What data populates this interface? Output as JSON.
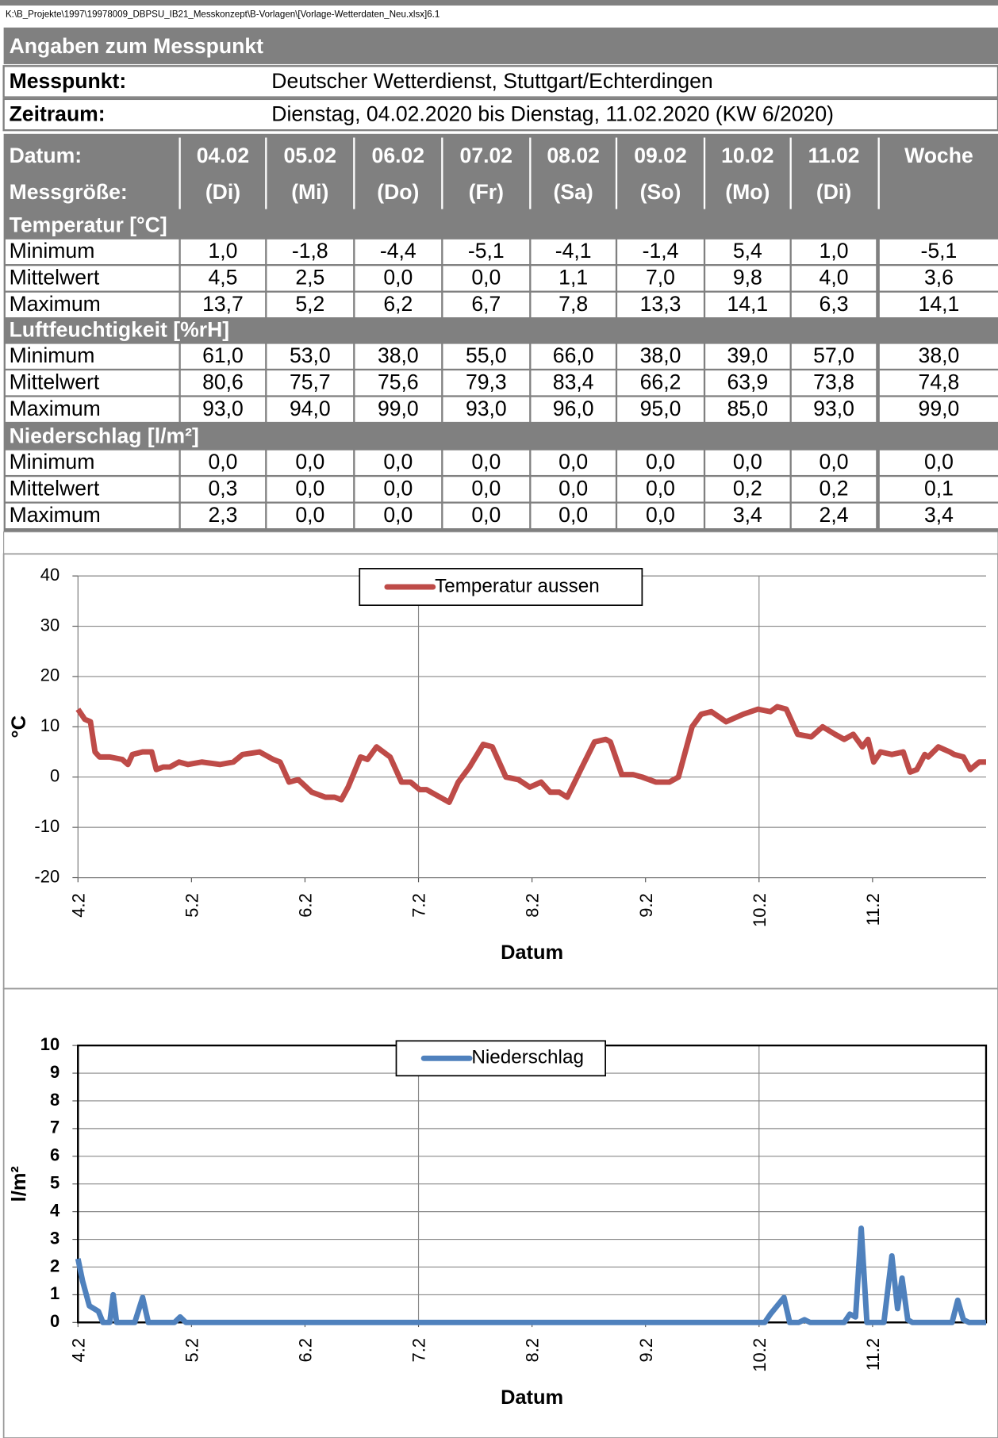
{
  "path": "K:\\B_Projekte\\1997\\19978009_DBPSU_IB21_Messkonzept\\B-Vorlagen\\[Vorlage-Wetterdaten_Neu.xlsx]6.1",
  "section_title": "Angaben zum Messpunkt",
  "info": [
    {
      "label": "Messpunkt:",
      "value": "Deutscher Wetterdienst, Stuttgart/Echterdingen"
    },
    {
      "label": "Zeitraum:",
      "value": "Dienstag, 04.02.2020 bis Dienstag, 11.02.2020 (KW 6/2020)"
    }
  ],
  "table": {
    "header1": [
      "Datum:",
      "04.02",
      "05.02",
      "06.02",
      "07.02",
      "08.02",
      "09.02",
      "10.02",
      "11.02",
      "Woche"
    ],
    "header2": [
      "Messgröße:",
      "(Di)",
      "(Mi)",
      "(Do)",
      "(Fr)",
      "(Sa)",
      "(So)",
      "(Mo)",
      "(Di)"
    ],
    "groups": [
      {
        "title": "Temperatur [°C]",
        "rows": [
          [
            "Minimum",
            "1,0",
            "-1,8",
            "-4,4",
            "-5,1",
            "-4,1",
            "-1,4",
            "5,4",
            "1,0",
            "-5,1"
          ],
          [
            "Mittelwert",
            "4,5",
            "2,5",
            "0,0",
            "0,0",
            "1,1",
            "7,0",
            "9,8",
            "4,0",
            "3,6"
          ],
          [
            "Maximum",
            "13,7",
            "5,2",
            "6,2",
            "6,7",
            "7,8",
            "13,3",
            "14,1",
            "6,3",
            "14,1"
          ]
        ]
      },
      {
        "title": "Luftfeuchtigkeit [%rH]",
        "rows": [
          [
            "Minimum",
            "61,0",
            "53,0",
            "38,0",
            "55,0",
            "66,0",
            "38,0",
            "39,0",
            "57,0",
            "38,0"
          ],
          [
            "Mittelwert",
            "80,6",
            "75,7",
            "75,6",
            "79,3",
            "83,4",
            "66,2",
            "63,9",
            "73,8",
            "74,8"
          ],
          [
            "Maximum",
            "93,0",
            "94,0",
            "99,0",
            "93,0",
            "96,0",
            "95,0",
            "85,0",
            "93,0",
            "99,0"
          ]
        ]
      },
      {
        "title": "Niederschlag [l/m²]",
        "rows": [
          [
            "Minimum",
            "0,0",
            "0,0",
            "0,0",
            "0,0",
            "0,0",
            "0,0",
            "0,0",
            "0,0",
            "0,0"
          ],
          [
            "Mittelwert",
            "0,3",
            "0,0",
            "0,0",
            "0,0",
            "0,0",
            "0,0",
            "0,2",
            "0,2",
            "0,1"
          ],
          [
            "Maximum",
            "2,3",
            "0,0",
            "0,0",
            "0,0",
            "0,0",
            "0,0",
            "3,4",
            "2,4",
            "3,4"
          ]
        ]
      }
    ]
  },
  "chart_data": [
    {
      "type": "line",
      "xlabel": "Datum",
      "ylabel": "°C",
      "ylim": [
        -20,
        40
      ],
      "yticks": [
        -20,
        -10,
        0,
        10,
        20,
        30,
        40
      ],
      "xlim": [
        0,
        8
      ],
      "xticks": [
        {
          "value": 0,
          "label": "4.2"
        },
        {
          "value": 1,
          "label": "5.2"
        },
        {
          "value": 2,
          "label": "6.2"
        },
        {
          "value": 3,
          "label": "7.2"
        },
        {
          "value": 4,
          "label": "8.2"
        },
        {
          "value": 5,
          "label": "9.2"
        },
        {
          "value": 6,
          "label": "10.2"
        },
        {
          "value": 7,
          "label": "11.2"
        }
      ],
      "xgrid": [
        3,
        6
      ],
      "grid": true,
      "bold_ticks": false,
      "legend": "top",
      "x": [
        0,
        0.06,
        0.11,
        0.15,
        0.19,
        0.28,
        0.39,
        0.44,
        0.48,
        0.57,
        0.65,
        0.69,
        0.75,
        0.81,
        0.89,
        0.97,
        1.09,
        1.25,
        1.37,
        1.45,
        1.6,
        1.72,
        1.78,
        1.86,
        1.94,
        2.06,
        2.18,
        2.26,
        2.32,
        2.38,
        2.49,
        2.55,
        2.63,
        2.75,
        2.85,
        2.93,
        3.01,
        3.07,
        3.19,
        3.27,
        3.35,
        3.45,
        3.57,
        3.65,
        3.77,
        3.88,
        3.98,
        4.08,
        4.16,
        4.24,
        4.31,
        4.44,
        4.55,
        4.65,
        4.69,
        4.79,
        4.89,
        4.97,
        5.09,
        5.21,
        5.29,
        5.41,
        5.49,
        5.58,
        5.71,
        5.86,
        5.99,
        6.1,
        6.16,
        6.24,
        6.34,
        6.46,
        6.56,
        6.67,
        6.75,
        6.83,
        6.91,
        6.96,
        7.01,
        7.07,
        7.17,
        7.27,
        7.33,
        7.39,
        7.46,
        7.49,
        7.58,
        7.68,
        7.72,
        7.8,
        7.86,
        7.94,
        8
      ],
      "series": [
        {
          "name": "Temperatur aussen",
          "color": "#be4b48",
          "values": [
            13.5,
            11.5,
            11,
            5,
            4,
            4,
            3.5,
            2.5,
            4.5,
            5,
            5,
            1.5,
            2,
            2,
            3,
            2.5,
            3,
            2.5,
            3,
            4.5,
            5,
            3.5,
            3,
            -1,
            -0.5,
            -3,
            -4,
            -4,
            -4.5,
            -2,
            4,
            3.5,
            6,
            4,
            -1,
            -1,
            -2.5,
            -2.5,
            -4,
            -5,
            -1,
            2,
            6.5,
            6,
            0,
            -0.5,
            -2,
            -1,
            -3,
            -3,
            -4,
            2,
            7,
            7.5,
            7,
            0.5,
            0.5,
            0,
            -1,
            -1,
            0,
            10,
            12.5,
            13,
            11,
            12.5,
            13.5,
            13,
            14,
            13.5,
            8.5,
            8,
            10,
            8.5,
            7.5,
            8.5,
            6,
            7.5,
            3,
            5,
            4.5,
            5,
            1,
            1.5,
            4.5,
            4,
            6,
            5,
            4.5,
            4,
            1.5,
            3,
            3
          ]
        }
      ]
    },
    {
      "type": "line",
      "xlabel": "Datum",
      "ylabel": "l/m²",
      "ylim": [
        0,
        10
      ],
      "yticks": [
        0,
        1,
        2,
        3,
        4,
        5,
        6,
        7,
        8,
        9,
        10
      ],
      "xlim": [
        0,
        8
      ],
      "xticks": [
        {
          "value": 0,
          "label": "4.2"
        },
        {
          "value": 1,
          "label": "5.2"
        },
        {
          "value": 2,
          "label": "6.2"
        },
        {
          "value": 3,
          "label": "7.2"
        },
        {
          "value": 4,
          "label": "8.2"
        },
        {
          "value": 5,
          "label": "9.2"
        },
        {
          "value": 6,
          "label": "10.2"
        },
        {
          "value": 7,
          "label": "11.2"
        }
      ],
      "xgrid": [
        3,
        6
      ],
      "grid": true,
      "bold_ticks": true,
      "legend": "top",
      "x": [
        0,
        0.04,
        0.1,
        0.18,
        0.22,
        0.28,
        0.31,
        0.34,
        0.5,
        0.57,
        0.62,
        0.85,
        0.9,
        0.95,
        6.05,
        6.1,
        6.22,
        6.27,
        6.35,
        6.4,
        6.45,
        6.75,
        6.8,
        6.85,
        6.9,
        6.95,
        7.1,
        7.17,
        7.22,
        7.26,
        7.31,
        7.35,
        7.7,
        7.75,
        7.8,
        7.85,
        8
      ],
      "series": [
        {
          "name": "Niederschlag",
          "color": "#4f81bd",
          "values": [
            2.3,
            1.5,
            0.6,
            0.4,
            0,
            0,
            1,
            0,
            0,
            0.9,
            0,
            0,
            0.2,
            0,
            0,
            0.3,
            0.9,
            0,
            0,
            0.1,
            0,
            0,
            0.3,
            0.2,
            3.4,
            0,
            0,
            2.4,
            0.5,
            1.6,
            0.1,
            0,
            0,
            0.8,
            0.1,
            0,
            0
          ]
        }
      ]
    }
  ]
}
